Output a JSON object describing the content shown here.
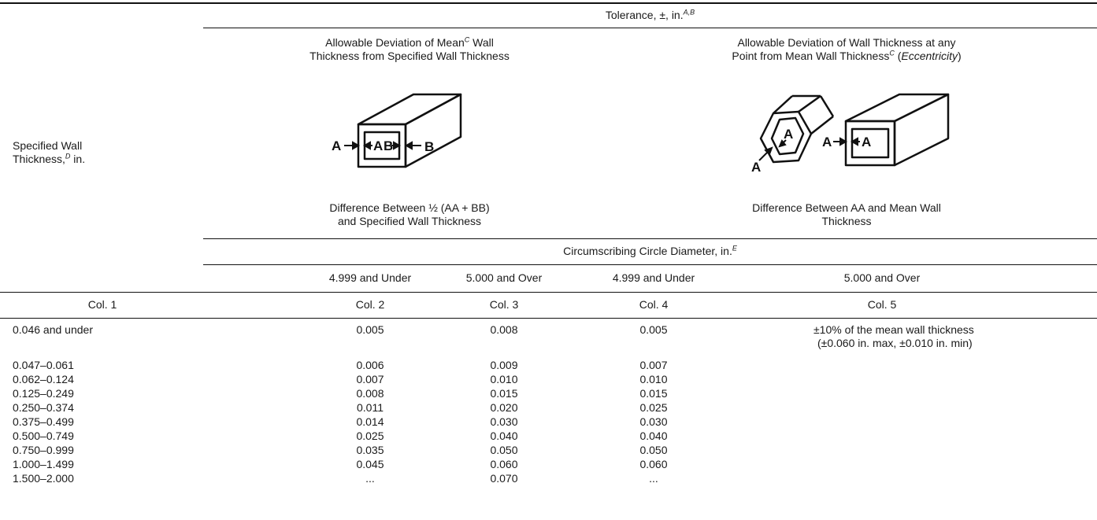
{
  "header": {
    "tolerance": "Tolerance, ±, in.",
    "tolerance_sup": "A,B",
    "mean_dev_line1_a": "Allowable Deviation of Mean",
    "mean_dev_line1_sup": "C",
    "mean_dev_line1_b": " Wall",
    "mean_dev_line2": "Thickness from Specified Wall Thickness",
    "ecc_line1": "Allowable Deviation of Wall Thickness at any",
    "ecc_line2_a": "Point from Mean Wall Thickness",
    "ecc_line2_sup": "C",
    "ecc_line2_b": " (",
    "ecc_line2_em": "Eccentricity",
    "ecc_line2_c": ")",
    "spec_wall_line1": "Specified Wall",
    "spec_wall_line2_a": "Thickness,",
    "spec_wall_line2_sup": "D",
    "spec_wall_line2_b": " in.",
    "diff_left_line1": "Difference Between ½ (AA + BB)",
    "diff_left_line2": "and Specified Wall Thickness",
    "diff_right_line1": "Difference Between AA and Mean Wall",
    "diff_right_line2": "Thickness",
    "circ": "Circumscribing Circle Diameter, in.",
    "circ_sup": "E",
    "sub_cols": [
      "4.999 and Under",
      "5.000 and Over",
      "4.999 and Under",
      "5.000 and Over"
    ],
    "col_labels": [
      "Col. 1",
      "Col. 2",
      "Col. 3",
      "Col. 4",
      "Col. 5"
    ]
  },
  "figure_labels": {
    "A": "A",
    "B": "B"
  },
  "col5_note_line1": "±10% of the mean wall thickness",
  "col5_note_line2": "(±0.060 in. max, ±0.010 in. min)",
  "rows": [
    {
      "range": "0.046 and under",
      "c2": "0.005",
      "c3": "0.008",
      "c4": "0.005"
    },
    {
      "range": "0.047–0.061",
      "c2": "0.006",
      "c3": "0.009",
      "c4": "0.007"
    },
    {
      "range": "0.062–0.124",
      "c2": "0.007",
      "c3": "0.010",
      "c4": "0.010"
    },
    {
      "range": "0.125–0.249",
      "c2": "0.008",
      "c3": "0.015",
      "c4": "0.015"
    },
    {
      "range": "0.250–0.374",
      "c2": "0.011",
      "c3": "0.020",
      "c4": "0.025"
    },
    {
      "range": "0.375–0.499",
      "c2": "0.014",
      "c3": "0.030",
      "c4": "0.030"
    },
    {
      "range": "0.500–0.749",
      "c2": "0.025",
      "c3": "0.040",
      "c4": "0.040"
    },
    {
      "range": "0.750–0.999",
      "c2": "0.035",
      "c3": "0.050",
      "c4": "0.050"
    },
    {
      "range": "1.000–1.499",
      "c2": "0.045",
      "c3": "0.060",
      "c4": "0.060"
    },
    {
      "range": "1.500–2.000",
      "c2": "...",
      "c3": "0.070",
      "c4": "..."
    }
  ]
}
